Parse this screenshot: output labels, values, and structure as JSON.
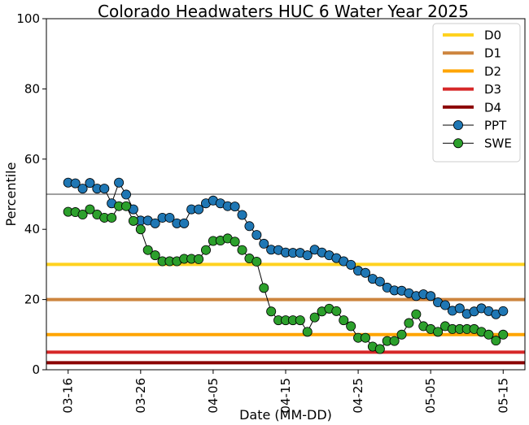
{
  "chart_data": {
    "type": "line",
    "title": "Colorado Headwaters HUC 6 Water Year 2025",
    "xlabel": "Date (MM-DD)",
    "ylabel": "Percentile",
    "ylim": [
      0,
      100
    ],
    "xlim": [
      "2025-03-13",
      "2025-05-18"
    ],
    "yticks": [
      0,
      20,
      40,
      60,
      80,
      100
    ],
    "xticks": [
      "03-16",
      "03-26",
      "04-05",
      "04-15",
      "04-25",
      "05-05",
      "05-15"
    ],
    "xtick_dates": [
      "2025-03-16",
      "2025-03-26",
      "2025-04-05",
      "2025-04-15",
      "2025-04-25",
      "2025-05-05",
      "2025-05-15"
    ],
    "grid": false,
    "legend_position": "top-right",
    "reference_lines": [
      {
        "name": "D0",
        "value": 30,
        "color": "#FFD21F"
      },
      {
        "name": "D1",
        "value": 20,
        "color": "#CD853F"
      },
      {
        "name": "D2",
        "value": 10,
        "color": "#FFA500"
      },
      {
        "name": "D3",
        "value": 5,
        "color": "#D62728"
      },
      {
        "name": "D4",
        "value": 2,
        "color": "#8B0000"
      }
    ],
    "median_line": {
      "value": 50,
      "color": "#808080"
    },
    "x": [
      "2025-03-16",
      "2025-03-17",
      "2025-03-18",
      "2025-03-19",
      "2025-03-20",
      "2025-03-21",
      "2025-03-22",
      "2025-03-23",
      "2025-03-24",
      "2025-03-25",
      "2025-03-26",
      "2025-03-27",
      "2025-03-28",
      "2025-03-29",
      "2025-03-30",
      "2025-03-31",
      "2025-04-01",
      "2025-04-02",
      "2025-04-03",
      "2025-04-04",
      "2025-04-05",
      "2025-04-06",
      "2025-04-07",
      "2025-04-08",
      "2025-04-09",
      "2025-04-10",
      "2025-04-11",
      "2025-04-12",
      "2025-04-13",
      "2025-04-14",
      "2025-04-15",
      "2025-04-16",
      "2025-04-17",
      "2025-04-18",
      "2025-04-19",
      "2025-04-20",
      "2025-04-21",
      "2025-04-22",
      "2025-04-23",
      "2025-04-24",
      "2025-04-25",
      "2025-04-26",
      "2025-04-27",
      "2025-04-28",
      "2025-04-29",
      "2025-04-30",
      "2025-05-01",
      "2025-05-02",
      "2025-05-03",
      "2025-05-04",
      "2025-05-05",
      "2025-05-06",
      "2025-05-07",
      "2025-05-08",
      "2025-05-09",
      "2025-05-10",
      "2025-05-11",
      "2025-05-12",
      "2025-05-13",
      "2025-05-14",
      "2025-05-15"
    ],
    "series": [
      {
        "name": "PPT",
        "color": "#1F77B4",
        "values": [
          53.3,
          53.1,
          51.6,
          53.2,
          51.6,
          51.6,
          47.4,
          53.3,
          49.9,
          45.7,
          42.5,
          42.5,
          41.7,
          43.3,
          43.3,
          41.7,
          41.7,
          45.7,
          45.7,
          47.4,
          48.2,
          47.4,
          46.6,
          46.5,
          44.1,
          40.9,
          38.4,
          35.9,
          34.2,
          34.1,
          33.4,
          33.3,
          33.3,
          32.6,
          34.2,
          33.4,
          32.6,
          31.8,
          30.9,
          29.9,
          28.2,
          27.6,
          25.9,
          25.1,
          23.4,
          22.6,
          22.5,
          21.8,
          21.0,
          21.5,
          21.0,
          19.2,
          18.4,
          16.8,
          17.5,
          15.9,
          16.6,
          17.5,
          16.7,
          15.8,
          16.7
        ]
      },
      {
        "name": "SWE",
        "color": "#2CA02C",
        "values": [
          45.0,
          44.9,
          44.2,
          45.7,
          44.2,
          43.3,
          43.3,
          46.6,
          46.6,
          42.4,
          40.0,
          34.1,
          32.6,
          30.9,
          30.9,
          30.9,
          31.6,
          31.6,
          31.5,
          34.1,
          36.7,
          36.8,
          37.4,
          36.5,
          34.1,
          31.7,
          30.8,
          23.3,
          16.6,
          14.1,
          14.1,
          14.1,
          14.1,
          10.8,
          14.9,
          16.6,
          17.4,
          16.7,
          14.1,
          12.4,
          9.1,
          9.1,
          6.6,
          5.9,
          8.2,
          8.2,
          10.0,
          13.3,
          15.8,
          12.4,
          11.6,
          10.8,
          12.4,
          11.6,
          11.6,
          11.6,
          11.6,
          10.8,
          10.0,
          8.3,
          10.0
        ]
      }
    ]
  }
}
